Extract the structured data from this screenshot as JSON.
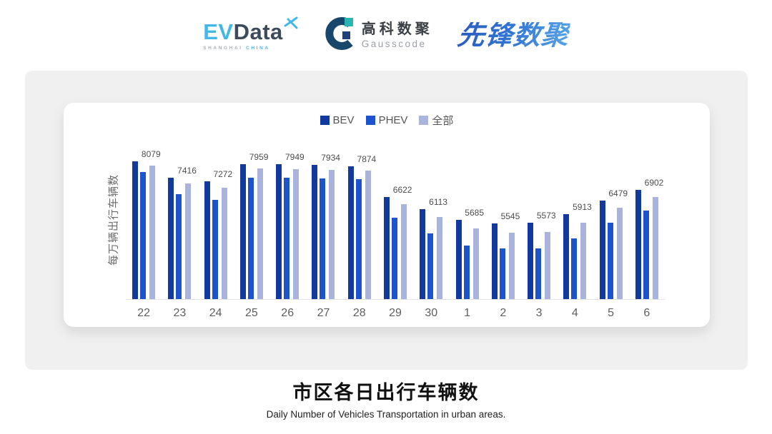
{
  "header": {
    "evdata": {
      "part1": "EV",
      "part2": "Data",
      "sub1": "SHANGHAI",
      "sub2": "CHINA"
    },
    "gausscode": {
      "name_cn": "高科数聚",
      "name_en": "Gausscode"
    },
    "pioneer": {
      "name_cn": "先锋数聚"
    }
  },
  "chart_data": {
    "type": "bar",
    "title": "市区各日出行车辆数",
    "subtitle": "Daily Number of Vehicles Transportation in urban areas.",
    "ylabel": "每万辆出行车辆数",
    "xlabel": "",
    "categories": [
      "22",
      "23",
      "24",
      "25",
      "26",
      "27",
      "28",
      "29",
      "30",
      "1",
      "2",
      "3",
      "4",
      "5",
      "6"
    ],
    "series": [
      {
        "name": "BEV",
        "color": "#12399E",
        "values": [
          8079,
          7416,
          7272,
          7959,
          7949,
          7934,
          7874,
          6622,
          6113,
          5685,
          5545,
          5573,
          5913,
          6479,
          6902
        ]
      },
      {
        "name": "PHEV",
        "color": "#1E53CE",
        "values": [
          7650,
          6740,
          6500,
          7420,
          7420,
          7370,
          7350,
          5770,
          5140,
          4630,
          4540,
          4520,
          4940,
          5570,
          6060
        ]
      },
      {
        "name": "全部",
        "color": "#A9B3DC",
        "values": [
          7900,
          7180,
          7010,
          7790,
          7760,
          7740,
          7690,
          6330,
          5800,
          5330,
          5170,
          5190,
          5570,
          6190,
          6620
        ]
      }
    ],
    "labels_series": "BEV",
    "bar_labels": [
      8079,
      7416,
      7272,
      7959,
      7949,
      7934,
      7874,
      6622,
      6113,
      5685,
      5545,
      5573,
      5913,
      6479,
      6902
    ],
    "ylim": [
      2460,
      9300
    ],
    "grid": false,
    "legend_position": "top"
  },
  "footer": {
    "title": "市区各日出行车辆数",
    "subtitle": "Daily Number of Vehicles Transportation in urban areas."
  }
}
